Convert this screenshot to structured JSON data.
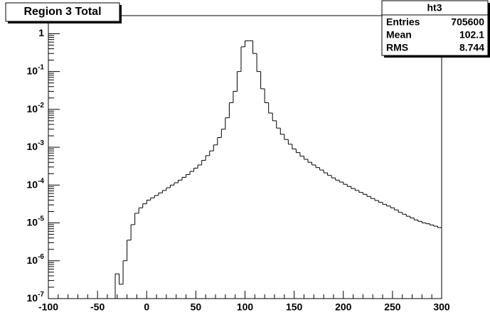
{
  "chart_data": {
    "type": "histogram",
    "title": "Region 3 Total",
    "bins": [
      -100,
      -96,
      -92,
      -88,
      -84,
      -80,
      -76,
      -72,
      -68,
      -64,
      -60,
      -56,
      -52,
      -48,
      -44,
      -40,
      -36,
      -32,
      -28,
      -24,
      -20,
      -16,
      -12,
      -8,
      -4,
      0,
      4,
      8,
      12,
      16,
      20,
      24,
      28,
      32,
      36,
      40,
      44,
      48,
      52,
      56,
      60,
      64,
      68,
      72,
      76,
      80,
      84,
      88,
      92,
      96,
      100,
      104,
      108,
      112,
      116,
      120,
      124,
      128,
      132,
      136,
      140,
      144,
      148,
      152,
      156,
      160,
      164,
      168,
      172,
      176,
      180,
      184,
      188,
      192,
      196,
      200,
      204,
      208,
      212,
      216,
      220,
      224,
      228,
      232,
      236,
      240,
      244,
      248,
      252,
      256,
      260,
      264,
      268,
      272,
      276,
      280,
      284,
      288,
      292,
      296,
      300
    ],
    "values": [
      0,
      0,
      0,
      0,
      0,
      0,
      0,
      0,
      0,
      0,
      0,
      0,
      0,
      0,
      0,
      0,
      0,
      4.5e-07,
      2.4e-07,
      1e-06,
      3.5e-06,
      9e-06,
      1.8e-05,
      2.5e-05,
      3.2e-05,
      4e-05,
      4.6e-05,
      5.3e-05,
      6.2e-05,
      7.2e-05,
      8.5e-05,
      0.0001,
      0.000115,
      0.000135,
      0.00016,
      0.00019,
      0.00023,
      0.00028,
      0.00034,
      0.00045,
      0.0006,
      0.0008,
      0.00115,
      0.0018,
      0.003,
      0.006,
      0.015,
      0.03,
      0.1,
      0.45,
      0.65,
      0.65,
      0.3,
      0.1,
      0.035,
      0.015,
      0.008,
      0.005,
      0.0032,
      0.0022,
      0.0016,
      0.0012,
      0.0009,
      0.00072,
      0.00058,
      0.00048,
      0.0004,
      0.00034,
      0.00029,
      0.00025,
      0.00021,
      0.00018,
      0.000155,
      0.000135,
      0.00012,
      0.000105,
      9.2e-05,
      8.1e-05,
      7.2e-05,
      6.4e-05,
      5.7e-05,
      5e-05,
      4.4e-05,
      3.9e-05,
      3.5e-05,
      3.1e-05,
      2.8e-05,
      2.5e-05,
      2.2e-05,
      1.9e-05,
      1.7e-05,
      1.5e-05,
      1.35e-05,
      1.2e-05,
      1.1e-05,
      1e-05,
      9.5e-06,
      8.8e-06,
      8.2e-06,
      7.5e-06
    ],
    "color": "#000000",
    "xlim": [
      -100,
      300
    ],
    "xticks": [
      -100,
      -50,
      0,
      50,
      100,
      150,
      200,
      250,
      300
    ],
    "ylim": [
      1e-07,
      3
    ],
    "log_y": true,
    "yticks": [
      {
        "value": 1e-07,
        "label": "10^-7"
      },
      {
        "value": 1e-06,
        "label": "10^-6"
      },
      {
        "value": 1e-05,
        "label": "10^-5"
      },
      {
        "value": 0.0001,
        "label": "10^-4"
      },
      {
        "value": 0.001,
        "label": "10^-3"
      },
      {
        "value": 0.01,
        "label": "10^-2"
      },
      {
        "value": 0.1,
        "label": "10^-1"
      },
      1
    ],
    "stats_box": {
      "title": "ht3",
      "rows": [
        {
          "label": "Entries",
          "value": 705600
        },
        {
          "label": "Mean",
          "value": 102.1
        },
        {
          "label": "RMS",
          "value": 8.744
        }
      ]
    }
  }
}
